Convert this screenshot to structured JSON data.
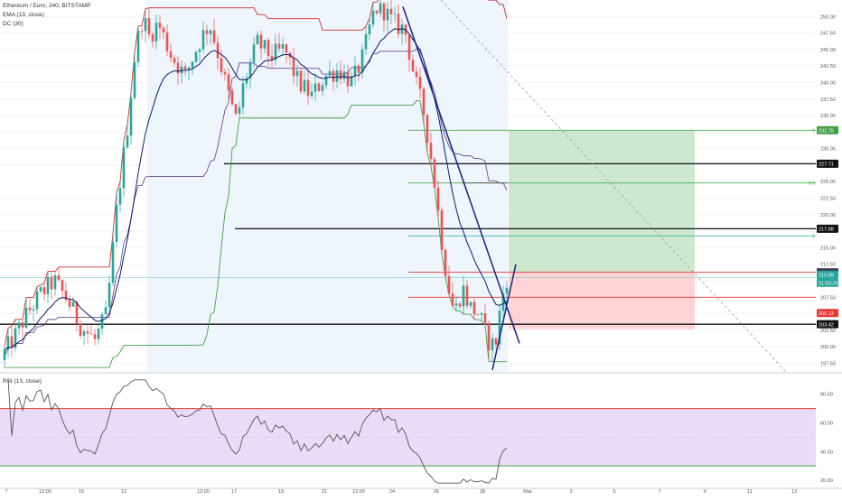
{
  "header": {
    "symbol_line": "Ethereum / Euro, 240, BITSTAMP",
    "indicator_1": "EMA (13, close)",
    "indicator_2": "DC (30)",
    "rsi_label": "RSI (13, close)"
  },
  "colors": {
    "up": "#26a69a",
    "down": "#ef5350",
    "ema": "#0d1b6e",
    "dc_upper": "#d32f2f",
    "dc_lower": "#43a047",
    "dc_mid": "#6a4c93",
    "rsi_line": "#555555",
    "rsi_band": "#eadcf7",
    "rsi_upper": "#e53935",
    "rsi_lower": "#43a047",
    "profit_zone": "#c8e6c9",
    "loss_zone": "#ffcdd2",
    "highlight": "#eef5fd"
  },
  "chart_data": [
    {
      "type": "candlestick",
      "title": "Ethereum / Euro, 240, BITSTAMP",
      "ylim": [
        196.2,
        252.5
      ],
      "y_ticks": [
        "250.00",
        "247.50",
        "245.00",
        "242.50",
        "240.00",
        "237.50",
        "235.00",
        "232.50",
        "230.00",
        "227.50",
        "225.00",
        "222.50",
        "220.00",
        "217.50",
        "215.00",
        "212.50",
        "210.00",
        "207.50",
        "205.00",
        "202.50",
        "200.00",
        "197.50"
      ],
      "x_ticks": [
        "7",
        "12:00",
        "10",
        "12",
        "12:00",
        "17",
        "19",
        "21",
        "12:00",
        "24",
        "26",
        "28",
        "Mar",
        "3",
        "5",
        "7",
        "9",
        "11",
        "13"
      ],
      "horizontal_levels": [
        {
          "value": 227.71,
          "label": "227.71",
          "color": "#111111"
        },
        {
          "value": 217.88,
          "label": "217.88",
          "color": "#111111"
        },
        {
          "value": 203.42,
          "label": "203.42",
          "color": "#111111"
        }
      ],
      "position_tool": {
        "target": 232.78,
        "entry": 211.29,
        "stop": 205.12,
        "target_label": "232.78",
        "entry_label": "211.29",
        "stop_label": "205.12"
      },
      "fib_labels": [
        "0",
        "0.5",
        "1"
      ],
      "price_labels": [
        {
          "value": 210.89,
          "text": "210.89"
        },
        {
          "value": 209.7,
          "text": "01:50:29"
        },
        {
          "value": 207.5,
          "text": "207.50"
        }
      ],
      "dc_last": {
        "upper": 251.2,
        "lower": 196.5,
        "mid": 223.8
      },
      "ema_last": 209.0,
      "last_close": 210.89
    },
    {
      "type": "line",
      "title": "RSI (13, close)",
      "ylim": [
        15,
        93
      ],
      "y_ticks": [
        "80.00",
        "60.00",
        "40.00",
        "20.00"
      ],
      "band": [
        30,
        70
      ],
      "last": 46
    }
  ]
}
